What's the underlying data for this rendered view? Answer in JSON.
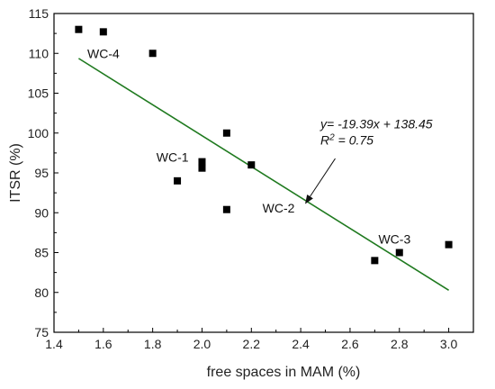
{
  "chart_data": {
    "type": "scatter",
    "xlabel": "free spaces in MAM (%)",
    "ylabel": "ITSR (%)",
    "xlim": [
      1.4,
      3.1
    ],
    "ylim": [
      75,
      115
    ],
    "xticks": [
      "1.4",
      "1.6",
      "1.8",
      "2.0",
      "2.2",
      "2.4",
      "2.6",
      "2.8",
      "3.0"
    ],
    "yticks": [
      "75",
      "80",
      "85",
      "90",
      "95",
      "100",
      "105",
      "110",
      "115"
    ],
    "grid": false,
    "points": [
      {
        "x": 1.5,
        "y": 113.0
      },
      {
        "x": 1.6,
        "y": 112.7
      },
      {
        "x": 1.8,
        "y": 110.0
      },
      {
        "x": 1.9,
        "y": 94.0
      },
      {
        "x": 2.0,
        "y": 96.4
      },
      {
        "x": 2.0,
        "y": 95.6
      },
      {
        "x": 2.1,
        "y": 100.0
      },
      {
        "x": 2.1,
        "y": 90.4
      },
      {
        "x": 2.2,
        "y": 96.0
      },
      {
        "x": 2.7,
        "y": 84.0
      },
      {
        "x": 2.8,
        "y": 85.0
      },
      {
        "x": 3.0,
        "y": 86.0
      }
    ],
    "fit": {
      "slope": -19.39,
      "intercept": 138.45,
      "x_range": [
        1.5,
        3.0
      ],
      "color": "#1f7a1f"
    },
    "marker_color": "#000000",
    "annotations": [
      {
        "text": "WC-4",
        "x": 1.535,
        "y": 110.0
      },
      {
        "text": "WC-1",
        "x": 1.815,
        "y": 97.0
      },
      {
        "text": "WC-2",
        "x": 2.245,
        "y": 90.6
      },
      {
        "text": "WC-3",
        "x": 2.715,
        "y": 86.7
      }
    ],
    "equation": {
      "line1": "y= -19.39x + 138.45",
      "line2_prefix": "R",
      "line2_sup": "2",
      "line2_suffix": " = 0.75",
      "x": 2.48,
      "y": 100.6
    },
    "arrow": {
      "from": [
        2.54,
        96.8
      ],
      "to": [
        2.42,
        91.2
      ]
    }
  }
}
